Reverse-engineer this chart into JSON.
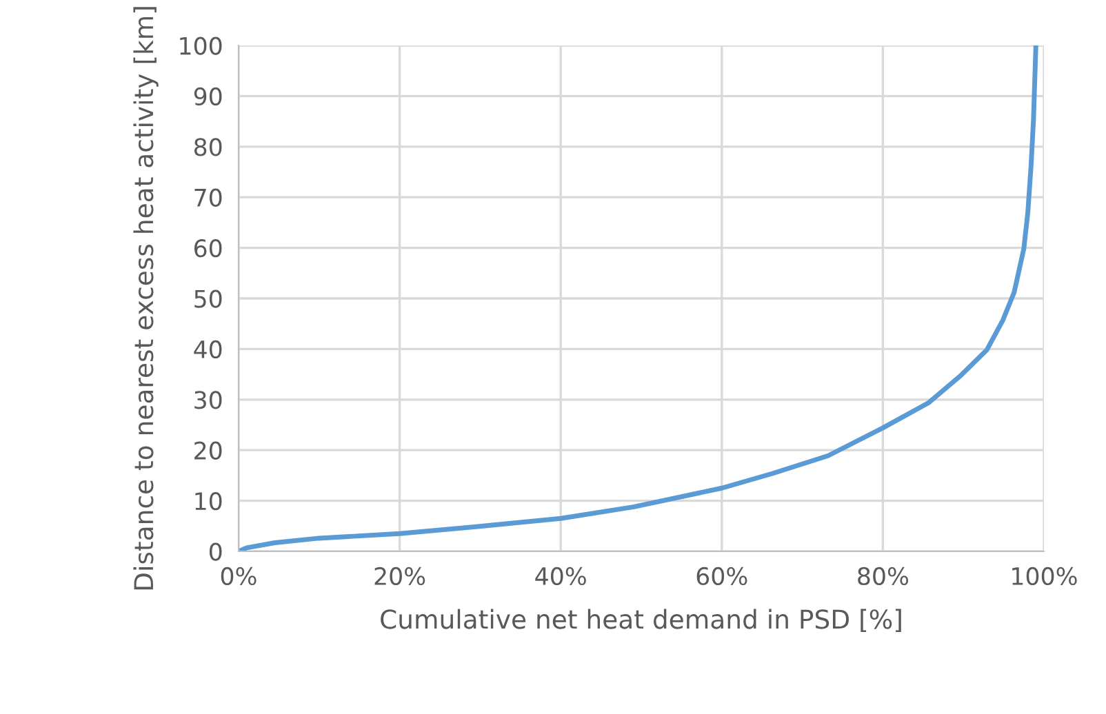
{
  "chart_data": {
    "type": "line",
    "xlabel": "Cumulative net heat demand in PSD [%]",
    "ylabel": "Distance to nearest excess heat activity [km]",
    "x": [
      0,
      1,
      4.5,
      10,
      20,
      29.7,
      40,
      49.1,
      60,
      66.3,
      73.2,
      80,
      85.7,
      89.7,
      92.9,
      94.9,
      96.3,
      97.5,
      98.0,
      98.4,
      98.7,
      99.0
    ],
    "series": [
      {
        "color": "#5b9bd5",
        "values": [
          0,
          0.7,
          1.7,
          2.6,
          3.5,
          4.9,
          6.5,
          8.8,
          12.5,
          15.4,
          18.9,
          24.4,
          29.4,
          34.8,
          39.8,
          45.7,
          51.2,
          59.8,
          67,
          76.2,
          85.3,
          100
        ]
      }
    ],
    "xlim": [
      0,
      100
    ],
    "xticks": [
      {
        "value": 0,
        "label": "0%"
      },
      {
        "value": 20,
        "label": "20%"
      },
      {
        "value": 40,
        "label": "40%"
      },
      {
        "value": 60,
        "label": "60%"
      },
      {
        "value": 80,
        "label": "80%"
      },
      {
        "value": 100,
        "label": "100%"
      }
    ],
    "ylim": [
      0,
      100
    ],
    "yticks": [
      0,
      10,
      20,
      30,
      40,
      50,
      60,
      70,
      80,
      90,
      100
    ],
    "grid": true,
    "line_style": "solid",
    "marker": "none"
  }
}
